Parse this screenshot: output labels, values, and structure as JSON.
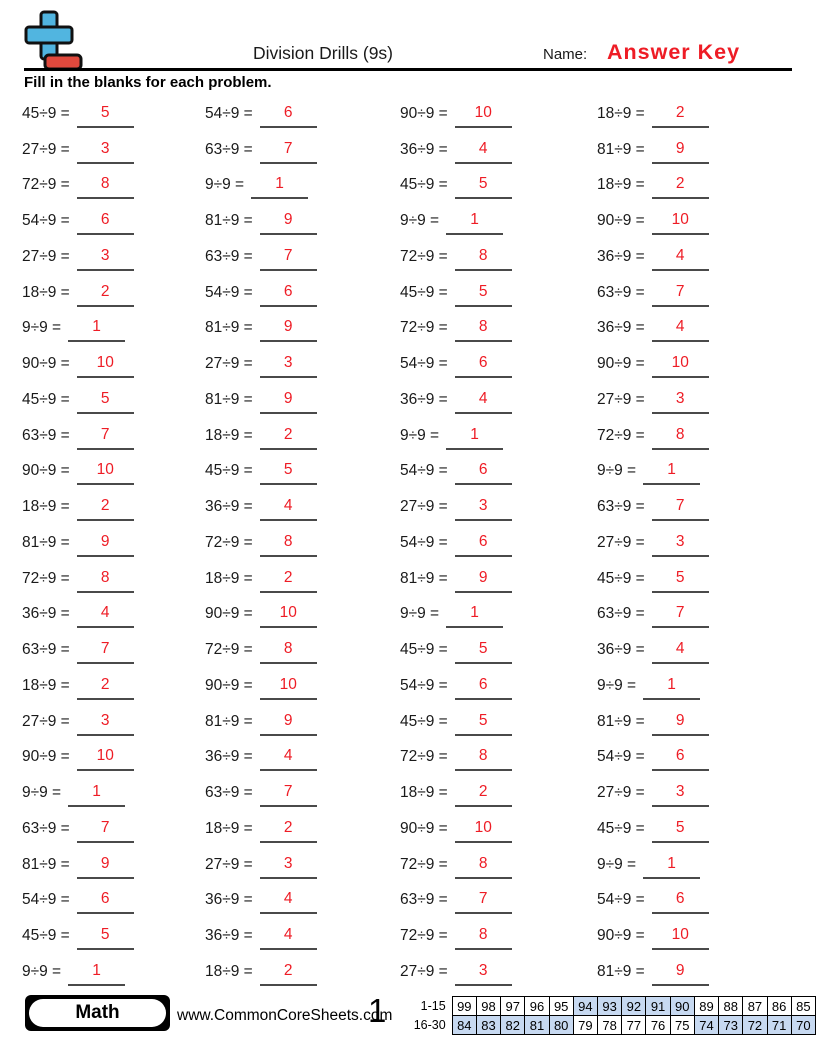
{
  "page": {
    "title": "Division Drills (9s)",
    "name_label": "Name:",
    "name_value": "Answer Key",
    "instructions": "Fill in the blanks for each problem."
  },
  "problems": {
    "column_lefts": [
      22,
      205,
      400,
      597
    ],
    "columns": [
      {
        "items": [
          {
            "q": "45÷9 =",
            "a": "5"
          },
          {
            "q": "27÷9 =",
            "a": "3"
          },
          {
            "q": "72÷9 =",
            "a": "8"
          },
          {
            "q": "54÷9 =",
            "a": "6"
          },
          {
            "q": "27÷9 =",
            "a": "3"
          },
          {
            "q": "18÷9 =",
            "a": "2"
          },
          {
            "q": "9÷9 =",
            "a": "1"
          },
          {
            "q": "90÷9 =",
            "a": "10"
          },
          {
            "q": "45÷9 =",
            "a": "5"
          },
          {
            "q": "63÷9 =",
            "a": "7"
          },
          {
            "q": "90÷9 =",
            "a": "10"
          },
          {
            "q": "18÷9 =",
            "a": "2"
          },
          {
            "q": "81÷9 =",
            "a": "9"
          },
          {
            "q": "72÷9 =",
            "a": "8"
          },
          {
            "q": "36÷9 =",
            "a": "4"
          },
          {
            "q": "63÷9 =",
            "a": "7"
          },
          {
            "q": "18÷9 =",
            "a": "2"
          },
          {
            "q": "27÷9 =",
            "a": "3"
          },
          {
            "q": "90÷9 =",
            "a": "10"
          },
          {
            "q": "9÷9 =",
            "a": "1"
          },
          {
            "q": "63÷9 =",
            "a": "7"
          },
          {
            "q": "81÷9 =",
            "a": "9"
          },
          {
            "q": "54÷9 =",
            "a": "6"
          },
          {
            "q": "45÷9 =",
            "a": "5"
          },
          {
            "q": "9÷9 =",
            "a": "1"
          }
        ]
      },
      {
        "items": [
          {
            "q": "54÷9 =",
            "a": "6"
          },
          {
            "q": "63÷9 =",
            "a": "7"
          },
          {
            "q": "9÷9 =",
            "a": "1"
          },
          {
            "q": "81÷9 =",
            "a": "9"
          },
          {
            "q": "63÷9 =",
            "a": "7"
          },
          {
            "q": "54÷9 =",
            "a": "6"
          },
          {
            "q": "81÷9 =",
            "a": "9"
          },
          {
            "q": "27÷9 =",
            "a": "3"
          },
          {
            "q": "81÷9 =",
            "a": "9"
          },
          {
            "q": "18÷9 =",
            "a": "2"
          },
          {
            "q": "45÷9 =",
            "a": "5"
          },
          {
            "q": "36÷9 =",
            "a": "4"
          },
          {
            "q": "72÷9 =",
            "a": "8"
          },
          {
            "q": "18÷9 =",
            "a": "2"
          },
          {
            "q": "90÷9 =",
            "a": "10"
          },
          {
            "q": "72÷9 =",
            "a": "8"
          },
          {
            "q": "90÷9 =",
            "a": "10"
          },
          {
            "q": "81÷9 =",
            "a": "9"
          },
          {
            "q": "36÷9 =",
            "a": "4"
          },
          {
            "q": "63÷9 =",
            "a": "7"
          },
          {
            "q": "18÷9 =",
            "a": "2"
          },
          {
            "q": "27÷9 =",
            "a": "3"
          },
          {
            "q": "36÷9 =",
            "a": "4"
          },
          {
            "q": "36÷9 =",
            "a": "4"
          },
          {
            "q": "18÷9 =",
            "a": "2"
          }
        ]
      },
      {
        "items": [
          {
            "q": "90÷9 =",
            "a": "10"
          },
          {
            "q": "36÷9 =",
            "a": "4"
          },
          {
            "q": "45÷9 =",
            "a": "5"
          },
          {
            "q": "9÷9 =",
            "a": "1"
          },
          {
            "q": "72÷9 =",
            "a": "8"
          },
          {
            "q": "45÷9 =",
            "a": "5"
          },
          {
            "q": "72÷9 =",
            "a": "8"
          },
          {
            "q": "54÷9 =",
            "a": "6"
          },
          {
            "q": "36÷9 =",
            "a": "4"
          },
          {
            "q": "9÷9 =",
            "a": "1"
          },
          {
            "q": "54÷9 =",
            "a": "6"
          },
          {
            "q": "27÷9 =",
            "a": "3"
          },
          {
            "q": "54÷9 =",
            "a": "6"
          },
          {
            "q": "81÷9 =",
            "a": "9"
          },
          {
            "q": "9÷9 =",
            "a": "1"
          },
          {
            "q": "45÷9 =",
            "a": "5"
          },
          {
            "q": "54÷9 =",
            "a": "6"
          },
          {
            "q": "45÷9 =",
            "a": "5"
          },
          {
            "q": "72÷9 =",
            "a": "8"
          },
          {
            "q": "18÷9 =",
            "a": "2"
          },
          {
            "q": "90÷9 =",
            "a": "10"
          },
          {
            "q": "72÷9 =",
            "a": "8"
          },
          {
            "q": "63÷9 =",
            "a": "7"
          },
          {
            "q": "72÷9 =",
            "a": "8"
          },
          {
            "q": "27÷9 =",
            "a": "3"
          }
        ]
      },
      {
        "items": [
          {
            "q": "18÷9 =",
            "a": "2"
          },
          {
            "q": "81÷9 =",
            "a": "9"
          },
          {
            "q": "18÷9 =",
            "a": "2"
          },
          {
            "q": "90÷9 =",
            "a": "10"
          },
          {
            "q": "36÷9 =",
            "a": "4"
          },
          {
            "q": "63÷9 =",
            "a": "7"
          },
          {
            "q": "36÷9 =",
            "a": "4"
          },
          {
            "q": "90÷9 =",
            "a": "10"
          },
          {
            "q": "27÷9 =",
            "a": "3"
          },
          {
            "q": "72÷9 =",
            "a": "8"
          },
          {
            "q": "9÷9 =",
            "a": "1"
          },
          {
            "q": "63÷9 =",
            "a": "7"
          },
          {
            "q": "27÷9 =",
            "a": "3"
          },
          {
            "q": "45÷9 =",
            "a": "5"
          },
          {
            "q": "63÷9 =",
            "a": "7"
          },
          {
            "q": "36÷9 =",
            "a": "4"
          },
          {
            "q": "9÷9 =",
            "a": "1"
          },
          {
            "q": "81÷9 =",
            "a": "9"
          },
          {
            "q": "54÷9 =",
            "a": "6"
          },
          {
            "q": "27÷9 =",
            "a": "3"
          },
          {
            "q": "45÷9 =",
            "a": "5"
          },
          {
            "q": "9÷9 =",
            "a": "1"
          },
          {
            "q": "54÷9 =",
            "a": "6"
          },
          {
            "q": "90÷9 =",
            "a": "10"
          },
          {
            "q": "81÷9 =",
            "a": "9"
          }
        ]
      }
    ]
  },
  "footer": {
    "subject_label": "Math",
    "website": "www.CommonCoreSheets.com",
    "page_number": "1",
    "grading_table": {
      "rows": [
        {
          "label": "1-15",
          "cells": [
            {
              "v": "99",
              "shaded": false
            },
            {
              "v": "98",
              "shaded": false
            },
            {
              "v": "97",
              "shaded": false
            },
            {
              "v": "96",
              "shaded": false
            },
            {
              "v": "95",
              "shaded": false
            },
            {
              "v": "94",
              "shaded": true
            },
            {
              "v": "93",
              "shaded": true
            },
            {
              "v": "92",
              "shaded": true
            },
            {
              "v": "91",
              "shaded": true
            },
            {
              "v": "90",
              "shaded": true
            },
            {
              "v": "89",
              "shaded": false
            },
            {
              "v": "88",
              "shaded": false
            },
            {
              "v": "87",
              "shaded": false
            },
            {
              "v": "86",
              "shaded": false
            },
            {
              "v": "85",
              "shaded": false
            }
          ]
        },
        {
          "label": "16-30",
          "cells": [
            {
              "v": "84",
              "shaded": true
            },
            {
              "v": "83",
              "shaded": true
            },
            {
              "v": "82",
              "shaded": true
            },
            {
              "v": "81",
              "shaded": true
            },
            {
              "v": "80",
              "shaded": true
            },
            {
              "v": "79",
              "shaded": false
            },
            {
              "v": "78",
              "shaded": false
            },
            {
              "v": "77",
              "shaded": false
            },
            {
              "v": "76",
              "shaded": false
            },
            {
              "v": "75",
              "shaded": false
            },
            {
              "v": "74",
              "shaded": true
            },
            {
              "v": "73",
              "shaded": true
            },
            {
              "v": "72",
              "shaded": true
            },
            {
              "v": "71",
              "shaded": true
            },
            {
              "v": "70",
              "shaded": true
            }
          ]
        }
      ]
    }
  },
  "colors": {
    "answer_red": "#ee1c25",
    "logo_blue": "#51b5e0",
    "logo_red": "#e0493d",
    "table_shade": "#c7d9f1"
  }
}
